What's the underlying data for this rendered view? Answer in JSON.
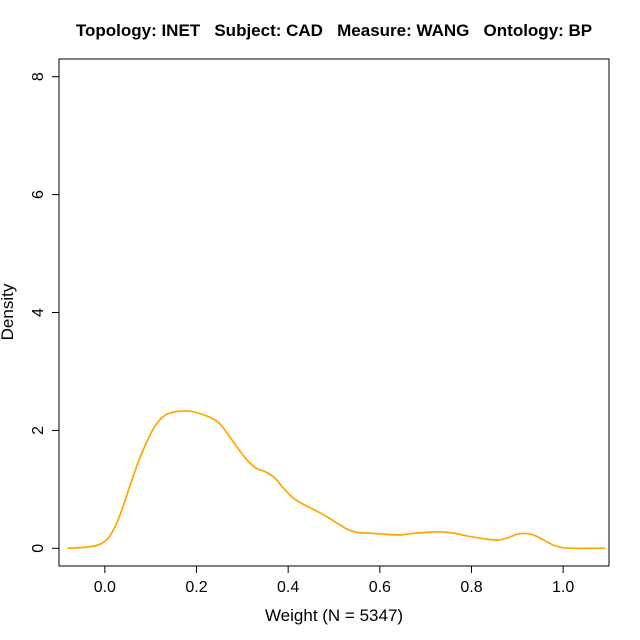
{
  "chart_data": {
    "type": "line",
    "title": "Topology: INET   Subject: CAD   Measure: WANG   Ontology: BP",
    "xlabel": "Weight (N = 5347)",
    "ylabel": "Density",
    "xlim": [
      -0.1,
      1.1
    ],
    "ylim": [
      -0.3,
      8.3
    ],
    "xticks": [
      0.0,
      0.2,
      0.4,
      0.6,
      0.8,
      1.0
    ],
    "xtick_labels": [
      "0.0",
      "0.2",
      "0.4",
      "0.6",
      "0.8",
      "1.0"
    ],
    "yticks": [
      0,
      2,
      4,
      6,
      8
    ],
    "ytick_labels": [
      "0",
      "2",
      "4",
      "6",
      "8"
    ],
    "grid": false,
    "series": [
      {
        "color": "#FFA500",
        "x": [
          -0.08,
          -0.04,
          -0.01,
          0.01,
          0.03,
          0.05,
          0.07,
          0.09,
          0.11,
          0.13,
          0.15,
          0.17,
          0.19,
          0.21,
          0.23,
          0.25,
          0.27,
          0.29,
          0.31,
          0.33,
          0.35,
          0.37,
          0.39,
          0.41,
          0.43,
          0.45,
          0.47,
          0.49,
          0.51,
          0.53,
          0.55,
          0.57,
          0.59,
          0.61,
          0.63,
          0.65,
          0.67,
          0.7,
          0.73,
          0.76,
          0.79,
          0.82,
          0.84,
          0.86,
          0.88,
          0.9,
          0.92,
          0.94,
          0.96,
          0.98,
          1.0,
          1.02,
          1.04,
          1.06,
          1.09
        ],
        "y": [
          0.0,
          0.02,
          0.07,
          0.2,
          0.5,
          0.95,
          1.4,
          1.78,
          2.08,
          2.25,
          2.31,
          2.33,
          2.32,
          2.28,
          2.22,
          2.12,
          1.92,
          1.7,
          1.5,
          1.36,
          1.3,
          1.2,
          1.02,
          0.86,
          0.76,
          0.68,
          0.6,
          0.51,
          0.41,
          0.32,
          0.27,
          0.26,
          0.25,
          0.24,
          0.23,
          0.23,
          0.25,
          0.27,
          0.28,
          0.26,
          0.21,
          0.17,
          0.15,
          0.14,
          0.18,
          0.24,
          0.25,
          0.21,
          0.13,
          0.05,
          0.01,
          0.0,
          0.0,
          0.0,
          0.0
        ]
      }
    ]
  }
}
